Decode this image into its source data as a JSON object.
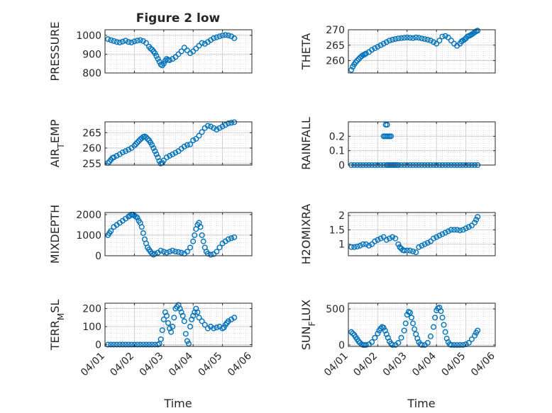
{
  "figure": {
    "title": "Figure 2 low",
    "xlabel": "Time"
  },
  "style": {
    "marker_color": "#0072BD",
    "axis_color": "#262626",
    "grid_color": "#c8c8c8",
    "background": "#ffffff"
  },
  "chart_data": [
    {
      "id": "pressure",
      "type": "scatter",
      "ylabel": "PRESSURE",
      "ylabel_sub": null,
      "ylim": [
        800,
        1030
      ],
      "yticks": [
        800,
        900,
        1000
      ],
      "ytick_labels": [
        "800",
        "900",
        "1000"
      ],
      "xlim": [
        0,
        5
      ],
      "xticks": [
        0,
        1,
        2,
        3,
        4,
        5
      ],
      "xtick_labels": [
        "04/01",
        "04/02",
        "04/03",
        "04/04",
        "04/05",
        "04/06"
      ],
      "grid": "on",
      "marker": "open-circle",
      "x": [
        0.1,
        0.2,
        0.3,
        0.4,
        0.5,
        0.6,
        0.7,
        0.8,
        0.9,
        1.0,
        1.1,
        1.2,
        1.3,
        1.4,
        1.5,
        1.55,
        1.6,
        1.65,
        1.7,
        1.75,
        1.8,
        1.85,
        1.9,
        1.95,
        2.0,
        2.05,
        2.1,
        2.15,
        2.2,
        2.3,
        2.4,
        2.5,
        2.6,
        2.7,
        2.8,
        2.9,
        3.0,
        3.1,
        3.2,
        3.3,
        3.4,
        3.5,
        3.6,
        3.7,
        3.8,
        3.9,
        4.0,
        4.1,
        4.2,
        4.3,
        4.4
      ],
      "y": [
        980,
        975,
        970,
        965,
        962,
        967,
        972,
        965,
        962,
        968,
        972,
        975,
        970,
        960,
        940,
        930,
        925,
        915,
        905,
        890,
        875,
        860,
        845,
        840,
        850,
        865,
        875,
        870,
        868,
        875,
        885,
        900,
        915,
        935,
        920,
        905,
        915,
        930,
        945,
        960,
        955,
        965,
        975,
        985,
        990,
        995,
        1000,
        1002,
        1000,
        995,
        985
      ]
    },
    {
      "id": "theta",
      "type": "scatter",
      "ylabel": "THETA",
      "ylabel_sub": null,
      "ylim": [
        256,
        270
      ],
      "yticks": [
        260,
        265,
        270
      ],
      "ytick_labels": [
        "260",
        "265",
        "270"
      ],
      "xlim": [
        0,
        5
      ],
      "xticks": [
        0,
        1,
        2,
        3,
        4,
        5
      ],
      "xtick_labels": [
        "04/01",
        "04/02",
        "04/03",
        "04/04",
        "04/05",
        "04/06"
      ],
      "grid": "on",
      "marker": "open-circle",
      "x": [
        0.1,
        0.15,
        0.2,
        0.25,
        0.3,
        0.35,
        0.4,
        0.45,
        0.5,
        0.55,
        0.6,
        0.7,
        0.8,
        0.9,
        1.0,
        1.1,
        1.2,
        1.3,
        1.4,
        1.5,
        1.6,
        1.7,
        1.8,
        1.9,
        2.0,
        2.1,
        2.2,
        2.3,
        2.4,
        2.5,
        2.6,
        2.7,
        2.8,
        2.9,
        3.0,
        3.1,
        3.2,
        3.3,
        3.4,
        3.5,
        3.6,
        3.7,
        3.8,
        3.85,
        3.9,
        3.95,
        4.0,
        4.05,
        4.1,
        4.15,
        4.2,
        4.25,
        4.3,
        4.35,
        4.4
      ],
      "y": [
        257,
        258,
        258.8,
        259.5,
        260,
        260.5,
        261,
        261.4,
        261.8,
        262,
        262.3,
        262.8,
        263.5,
        264,
        264.5,
        265,
        265.5,
        266,
        266.5,
        266.8,
        267,
        267.2,
        267.3,
        267.4,
        267.5,
        267.4,
        267.3,
        267.5,
        267.4,
        267.2,
        267,
        266.8,
        266.5,
        266,
        265.5,
        266.5,
        267.8,
        268,
        267.5,
        266.5,
        265.5,
        264.8,
        265.5,
        266.2,
        266.5,
        266.8,
        267.2,
        267.8,
        268,
        268.2,
        268.5,
        268.8,
        269.2,
        269.5,
        269.7
      ]
    },
    {
      "id": "air_temp",
      "type": "scatter",
      "ylabel": "AIR",
      "ylabel_sub": "T",
      "ylabel_suffix": "EMP",
      "ylim": [
        254.5,
        268.5
      ],
      "yticks": [
        255,
        260,
        265
      ],
      "ytick_labels": [
        "255",
        "260",
        "265"
      ],
      "xlim": [
        0,
        5
      ],
      "xticks": [
        0,
        1,
        2,
        3,
        4,
        5
      ],
      "xtick_labels": [
        "04/01",
        "04/02",
        "04/03",
        "04/04",
        "04/05",
        "04/06"
      ],
      "grid": "on",
      "marker": "open-circle",
      "x": [
        0.1,
        0.15,
        0.2,
        0.25,
        0.3,
        0.4,
        0.5,
        0.6,
        0.7,
        0.8,
        0.9,
        1.0,
        1.05,
        1.1,
        1.15,
        1.2,
        1.25,
        1.3,
        1.35,
        1.4,
        1.45,
        1.5,
        1.55,
        1.6,
        1.65,
        1.7,
        1.75,
        1.8,
        1.85,
        1.9,
        1.95,
        2.0,
        2.1,
        2.2,
        2.3,
        2.4,
        2.5,
        2.6,
        2.7,
        2.8,
        2.9,
        3.0,
        3.1,
        3.2,
        3.3,
        3.4,
        3.5,
        3.6,
        3.7,
        3.8,
        3.9,
        4.0,
        4.1,
        4.2,
        4.3,
        4.4
      ],
      "y": [
        255.2,
        255.6,
        256.2,
        256.8,
        257,
        257.5,
        258,
        258.6,
        259,
        259.5,
        260,
        260.8,
        261.3,
        261.8,
        262.3,
        262.8,
        263.2,
        263.6,
        263.8,
        263.5,
        263,
        262.5,
        261.8,
        261,
        260,
        259,
        258,
        257,
        255.8,
        255,
        255.2,
        256,
        257,
        257.5,
        258,
        258.5,
        259,
        259.8,
        260.5,
        261,
        261.2,
        262.5,
        263,
        264,
        265.2,
        266.5,
        267.2,
        267,
        266.5,
        266,
        266.5,
        267,
        267.5,
        268,
        268.2,
        268.4
      ]
    },
    {
      "id": "rainfall",
      "type": "scatter",
      "ylabel": "RAINFALL",
      "ylabel_sub": null,
      "ylim": [
        0,
        0.3
      ],
      "yticks": [
        0,
        0.1,
        0.2
      ],
      "ytick_labels": [
        "0",
        "0.1",
        "0.2"
      ],
      "xlim": [
        0,
        5
      ],
      "xticks": [
        0,
        1,
        2,
        3,
        4,
        5
      ],
      "xtick_labels": [
        "04/01",
        "04/02",
        "04/03",
        "04/04",
        "04/05",
        "04/06"
      ],
      "grid": "on",
      "marker": "open-circle",
      "x": [
        0.1,
        0.2,
        0.3,
        0.4,
        0.5,
        0.6,
        0.7,
        0.8,
        0.9,
        1.0,
        1.1,
        1.2,
        1.3,
        1.35,
        1.4,
        1.45,
        1.5,
        1.55,
        1.6,
        1.65,
        1.7,
        1.8,
        1.9,
        2.0,
        2.1,
        2.2,
        2.3,
        2.4,
        2.5,
        2.6,
        2.7,
        2.8,
        2.9,
        3.0,
        3.1,
        3.2,
        3.3,
        3.4,
        3.5,
        3.6,
        3.7,
        3.8,
        3.9,
        4.0,
        4.1,
        4.2,
        4.3,
        4.4,
        1.2,
        1.25,
        1.3,
        1.35,
        1.4,
        1.45,
        1.27,
        1.32
      ],
      "y": [
        0,
        0,
        0,
        0,
        0,
        0,
        0,
        0,
        0,
        0,
        0,
        0,
        0,
        0,
        0,
        0,
        0,
        0,
        0,
        0,
        0,
        0,
        0,
        0,
        0,
        0,
        0,
        0,
        0,
        0,
        0,
        0,
        0,
        0,
        0,
        0,
        0,
        0,
        0,
        0,
        0,
        0,
        0,
        0,
        0,
        0,
        0,
        0,
        0.2,
        0.2,
        0.2,
        0.2,
        0.2,
        0.2,
        0.28,
        0.28
      ]
    },
    {
      "id": "mixdepth",
      "type": "scatter",
      "ylabel": "MIXDEPTH",
      "ylabel_sub": null,
      "ylim": [
        0,
        2100
      ],
      "yticks": [
        0,
        1000,
        2000
      ],
      "ytick_labels": [
        "0",
        "1000",
        "2000"
      ],
      "xlim": [
        0,
        5
      ],
      "xticks": [
        0,
        1,
        2,
        3,
        4,
        5
      ],
      "xtick_labels": [
        "04/01",
        "04/02",
        "04/03",
        "04/04",
        "04/05",
        "04/06"
      ],
      "grid": "on",
      "marker": "open-circle",
      "x": [
        0.1,
        0.15,
        0.2,
        0.3,
        0.4,
        0.5,
        0.6,
        0.7,
        0.8,
        0.85,
        0.9,
        0.95,
        1.0,
        1.05,
        1.1,
        1.15,
        1.2,
        1.25,
        1.3,
        1.35,
        1.4,
        1.45,
        1.5,
        1.55,
        1.6,
        1.65,
        1.7,
        1.8,
        1.9,
        2.0,
        2.1,
        2.2,
        2.3,
        2.4,
        2.5,
        2.6,
        2.7,
        2.8,
        2.9,
        3.0,
        3.05,
        3.1,
        3.15,
        3.2,
        3.25,
        3.3,
        3.35,
        3.4,
        3.45,
        3.5,
        3.6,
        3.7,
        3.8,
        3.9,
        4.0,
        4.1,
        4.2,
        4.3,
        4.4
      ],
      "y": [
        1000,
        1100,
        1200,
        1400,
        1500,
        1600,
        1700,
        1800,
        1900,
        1950,
        2000,
        2000,
        1950,
        1900,
        1850,
        1700,
        1600,
        1400,
        1100,
        800,
        600,
        400,
        300,
        200,
        100,
        50,
        100,
        150,
        250,
        200,
        150,
        200,
        250,
        200,
        180,
        150,
        100,
        200,
        400,
        700,
        1000,
        1300,
        1500,
        1600,
        1400,
        1000,
        700,
        400,
        200,
        100,
        50,
        80,
        200,
        400,
        600,
        700,
        800,
        850,
        900
      ]
    },
    {
      "id": "h2omixra",
      "type": "scatter",
      "ylabel": "H2OMIXRA",
      "ylabel_sub": null,
      "ylim": [
        0.6,
        2.1
      ],
      "yticks": [
        1,
        1.5,
        2
      ],
      "ytick_labels": [
        "1",
        "1.5",
        "2"
      ],
      "xlim": [
        0,
        5
      ],
      "xticks": [
        0,
        1,
        2,
        3,
        4,
        5
      ],
      "xtick_labels": [
        "04/01",
        "04/02",
        "04/03",
        "04/04",
        "04/05",
        "04/06"
      ],
      "grid": "on",
      "marker": "open-circle",
      "x": [
        0.1,
        0.2,
        0.3,
        0.4,
        0.5,
        0.6,
        0.7,
        0.8,
        0.9,
        1.0,
        1.1,
        1.2,
        1.3,
        1.4,
        1.5,
        1.6,
        1.7,
        1.75,
        1.8,
        1.85,
        1.9,
        2.0,
        2.1,
        2.2,
        2.3,
        2.4,
        2.5,
        2.6,
        2.7,
        2.8,
        2.9,
        3.0,
        3.1,
        3.2,
        3.3,
        3.4,
        3.5,
        3.6,
        3.7,
        3.8,
        3.9,
        4.0,
        4.1,
        4.2,
        4.3,
        4.35,
        4.4
      ],
      "y": [
        0.9,
        0.9,
        0.92,
        0.95,
        1.0,
        1.0,
        0.95,
        1.0,
        1.1,
        1.15,
        1.2,
        1.25,
        1.15,
        1.2,
        1.25,
        1.2,
        1.0,
        0.9,
        0.85,
        0.8,
        0.78,
        0.78,
        0.78,
        0.75,
        0.72,
        0.9,
        0.95,
        1.0,
        1.05,
        1.1,
        1.2,
        1.25,
        1.3,
        1.35,
        1.4,
        1.45,
        1.5,
        1.5,
        1.5,
        1.48,
        1.5,
        1.55,
        1.6,
        1.65,
        1.75,
        1.85,
        1.95
      ]
    },
    {
      "id": "terr_msl",
      "type": "scatter",
      "ylabel": "TERR",
      "ylabel_sub": "M",
      "ylabel_suffix": "SL",
      "ylim": [
        -10,
        230
      ],
      "yticks": [
        0,
        100,
        200
      ],
      "ytick_labels": [
        "0",
        "100",
        "200"
      ],
      "xlim": [
        0,
        5
      ],
      "xticks": [
        0,
        1,
        2,
        3,
        4,
        5
      ],
      "xtick_labels": [
        "04/01",
        "04/02",
        "04/03",
        "04/04",
        "04/05",
        "04/06"
      ],
      "grid": "on",
      "marker": "open-circle",
      "x": [
        0.1,
        0.2,
        0.3,
        0.4,
        0.5,
        0.6,
        0.7,
        0.8,
        0.9,
        1.0,
        1.1,
        1.2,
        1.3,
        1.4,
        1.5,
        1.6,
        1.7,
        1.8,
        1.85,
        1.9,
        1.95,
        2.0,
        2.05,
        2.1,
        2.15,
        2.2,
        2.25,
        2.3,
        2.35,
        2.4,
        2.45,
        2.5,
        2.55,
        2.6,
        2.65,
        2.7,
        2.75,
        2.8,
        2.85,
        2.9,
        2.95,
        3.0,
        3.05,
        3.1,
        3.15,
        3.2,
        3.3,
        3.4,
        3.5,
        3.6,
        3.7,
        3.8,
        3.9,
        4.0,
        4.05,
        4.1,
        4.15,
        4.2,
        4.3,
        4.4
      ],
      "y": [
        0,
        0,
        0,
        0,
        0,
        0,
        0,
        0,
        0,
        0,
        0,
        0,
        0,
        0,
        0,
        0,
        0,
        0,
        5,
        30,
        80,
        140,
        180,
        160,
        120,
        90,
        70,
        100,
        150,
        200,
        210,
        220,
        200,
        180,
        160,
        130,
        60,
        20,
        5,
        100,
        140,
        160,
        180,
        200,
        180,
        150,
        130,
        110,
        90,
        100,
        90,
        95,
        100,
        90,
        95,
        110,
        120,
        130,
        140,
        150
      ]
    },
    {
      "id": "sun_flux",
      "type": "scatter",
      "ylabel": "SUN",
      "ylabel_sub": "F",
      "ylabel_suffix": "LUX",
      "ylim": [
        -20,
        580
      ],
      "yticks": [
        0,
        500
      ],
      "ytick_labels": [
        "0",
        "500"
      ],
      "xlim": [
        0,
        5
      ],
      "xticks": [
        0,
        1,
        2,
        3,
        4,
        5
      ],
      "xtick_labels": [
        "04/01",
        "04/02",
        "04/03",
        "04/04",
        "04/05",
        "04/06"
      ],
      "grid": "on",
      "marker": "open-circle",
      "x": [
        0.1,
        0.15,
        0.2,
        0.25,
        0.3,
        0.35,
        0.4,
        0.45,
        0.5,
        0.55,
        0.6,
        0.7,
        0.8,
        0.9,
        1.0,
        1.05,
        1.1,
        1.15,
        1.2,
        1.25,
        1.3,
        1.35,
        1.4,
        1.45,
        1.5,
        1.6,
        1.7,
        1.8,
        1.9,
        1.95,
        2.0,
        2.05,
        2.1,
        2.15,
        2.2,
        2.25,
        2.3,
        2.35,
        2.4,
        2.45,
        2.5,
        2.6,
        2.7,
        2.8,
        2.9,
        2.95,
        3.0,
        3.05,
        3.1,
        3.15,
        3.2,
        3.25,
        3.3,
        3.35,
        3.4,
        3.45,
        3.5,
        3.6,
        3.7,
        3.8,
        3.9,
        4.0,
        4.1,
        4.2,
        4.3,
        4.35,
        4.4
      ],
      "y": [
        180,
        160,
        140,
        110,
        80,
        50,
        30,
        10,
        0,
        0,
        0,
        10,
        40,
        100,
        160,
        200,
        230,
        250,
        240,
        200,
        150,
        100,
        50,
        20,
        0,
        0,
        30,
        100,
        200,
        300,
        420,
        460,
        450,
        380,
        300,
        220,
        150,
        90,
        40,
        10,
        0,
        0,
        30,
        120,
        250,
        380,
        480,
        510,
        520,
        470,
        380,
        280,
        180,
        90,
        40,
        10,
        0,
        0,
        0,
        0,
        0,
        10,
        30,
        80,
        130,
        170,
        200
      ]
    }
  ]
}
